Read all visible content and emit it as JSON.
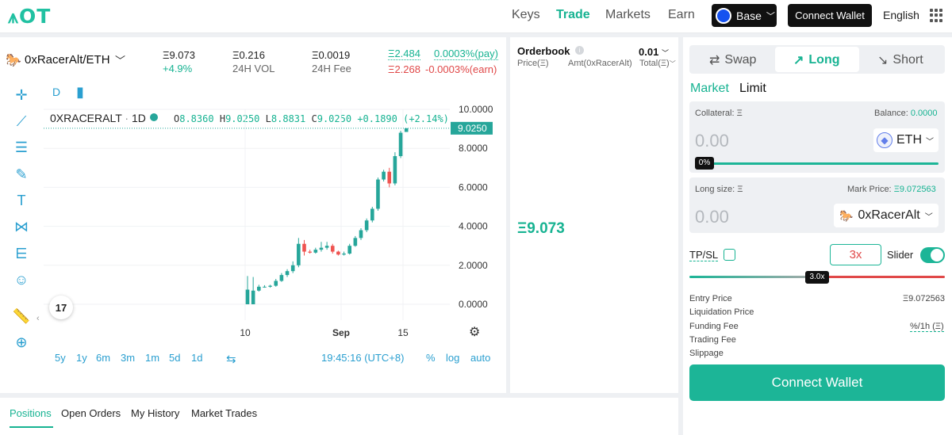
{
  "nav": {
    "logo": "OT",
    "links": [
      "Keys",
      "Trade",
      "Markets",
      "Earn"
    ],
    "network": "Base",
    "connect": "Connect Wallet",
    "language": "English"
  },
  "pair": {
    "name": "0xRacerAlt/ETH",
    "price": "Ξ9.073",
    "change": "+4.9%",
    "vol_value": "Ξ0.216",
    "vol_label": "24H VOL",
    "fee_value": "Ξ0.0019",
    "fee_label": "24H Fee",
    "long_price": "Ξ2.484",
    "short_price": "Ξ2.268",
    "funding_pay": "0.0003%(pay)",
    "funding_earn": "-0.0003%(earn)"
  },
  "chart": {
    "interval_btn": "D",
    "symbol": "0XRACERALT",
    "tf": "1D",
    "o_lbl": "O",
    "o_val": "8.8360",
    "h_lbl": "H",
    "h_val": "9.0250",
    "l_lbl": "L",
    "l_val": "8.8831",
    "c_lbl": "C",
    "c_val": "9.0250",
    "chg": "+0.1890 (+2.14%)",
    "last_price_tag": "9.0250",
    "y_ticks": [
      "10.0000",
      "8.0000",
      "6.0000",
      "4.0000",
      "2.0000",
      "0.0000"
    ],
    "x_ticks": [
      "10",
      "Sep",
      "15"
    ],
    "ranges": [
      "5y",
      "1y",
      "6m",
      "3m",
      "1m",
      "5d",
      "1d"
    ],
    "time": "19:45:16 (UTC+8)",
    "scale_opts": [
      "%",
      "log",
      "auto"
    ],
    "colors": {
      "up": "#26a69a",
      "down": "#ef5350"
    }
  },
  "chart_data": {
    "type": "candlestick",
    "title": "0XRACERALT · 1D",
    "ylim": [
      0,
      10
    ],
    "y_ticks": [
      10,
      8,
      6,
      4,
      2,
      0
    ],
    "x_ticks": [
      "10",
      "Sep",
      "15"
    ],
    "candles": [
      {
        "o": 0.0,
        "h": 1.45,
        "l": 0.0,
        "c": 0.75
      },
      {
        "o": 0.0,
        "h": 1.4,
        "l": 0.0,
        "c": 0.7
      },
      {
        "o": 0.7,
        "h": 1.0,
        "l": 0.65,
        "c": 0.9
      },
      {
        "o": 0.9,
        "h": 0.98,
        "l": 0.85,
        "c": 0.9
      },
      {
        "o": 0.9,
        "h": 1.0,
        "l": 0.85,
        "c": 0.95
      },
      {
        "o": 0.95,
        "h": 1.3,
        "l": 0.9,
        "c": 1.2
      },
      {
        "o": 1.2,
        "h": 1.6,
        "l": 1.15,
        "c": 1.5
      },
      {
        "o": 1.5,
        "h": 1.8,
        "l": 1.4,
        "c": 1.7
      },
      {
        "o": 1.7,
        "h": 2.2,
        "l": 1.6,
        "c": 2.0
      },
      {
        "o": 2.0,
        "h": 3.4,
        "l": 1.9,
        "c": 3.1
      },
      {
        "o": 3.1,
        "h": 3.3,
        "l": 2.5,
        "c": 2.7
      },
      {
        "o": 2.7,
        "h": 2.8,
        "l": 2.6,
        "c": 2.65
      },
      {
        "o": 2.65,
        "h": 2.9,
        "l": 2.6,
        "c": 2.8
      },
      {
        "o": 2.8,
        "h": 3.2,
        "l": 2.7,
        "c": 2.9
      },
      {
        "o": 2.9,
        "h": 3.2,
        "l": 2.8,
        "c": 3.0
      },
      {
        "o": 3.0,
        "h": 3.1,
        "l": 2.6,
        "c": 2.7
      },
      {
        "o": 2.7,
        "h": 2.75,
        "l": 2.5,
        "c": 2.55
      },
      {
        "o": 2.55,
        "h": 2.7,
        "l": 2.5,
        "c": 2.6
      },
      {
        "o": 2.6,
        "h": 3.1,
        "l": 2.55,
        "c": 3.0
      },
      {
        "o": 3.0,
        "h": 3.5,
        "l": 2.95,
        "c": 3.4
      },
      {
        "o": 3.4,
        "h": 3.9,
        "l": 3.3,
        "c": 3.8
      },
      {
        "o": 3.8,
        "h": 4.4,
        "l": 3.7,
        "c": 4.3
      },
      {
        "o": 4.3,
        "h": 5.0,
        "l": 4.2,
        "c": 4.9
      },
      {
        "o": 4.9,
        "h": 6.5,
        "l": 4.8,
        "c": 6.4
      },
      {
        "o": 6.4,
        "h": 6.9,
        "l": 6.3,
        "c": 6.8
      },
      {
        "o": 6.8,
        "h": 7.0,
        "l": 6.0,
        "c": 6.2
      },
      {
        "o": 6.2,
        "h": 7.8,
        "l": 6.1,
        "c": 7.6
      },
      {
        "o": 7.6,
        "h": 8.9,
        "l": 7.5,
        "c": 8.8
      },
      {
        "o": 8.84,
        "h": 9.03,
        "l": 8.88,
        "c": 9.03
      }
    ]
  },
  "orderbook": {
    "title": "Orderbook",
    "tick": "0.01",
    "col_price": "Price(Ξ)",
    "col_amt": "Amt(0xRacerAlt)",
    "col_total": "Total(Ξ)",
    "mid_price": "Ξ9.073"
  },
  "bottom_tabs": [
    "Positions",
    "Open Orders",
    "My History",
    "Market Trades"
  ],
  "trade": {
    "tabs": [
      "Swap",
      "Long",
      "Short"
    ],
    "order_types": [
      "Market",
      "Limit"
    ],
    "collateral_lbl": "Collateral: Ξ",
    "balance_lbl": "Balance:",
    "balance_val": "0.0000",
    "collateral_val": "0.00",
    "collateral_token": "ETH",
    "pct_badge": "0%",
    "long_size_lbl": "Long size: Ξ",
    "mark_price_lbl": "Mark Price:",
    "mark_price_val": "Ξ9.072563",
    "long_size_val": "0.00",
    "long_token": "0xRacerAlt",
    "tpsl": "TP/SL",
    "leverage": "3x",
    "slider_lbl": "Slider",
    "lev_badge": "3.0x",
    "leverage_fraction": 0.5,
    "info": [
      {
        "label": "Entry Price",
        "value": "Ξ9.072563"
      },
      {
        "label": "Liquidation Price",
        "value": ""
      },
      {
        "label": "Funding Fee",
        "value": "%/1h (Ξ)"
      },
      {
        "label": "Trading Fee",
        "value": ""
      },
      {
        "label": "Slippage",
        "value": ""
      }
    ],
    "connect": "Connect Wallet"
  }
}
